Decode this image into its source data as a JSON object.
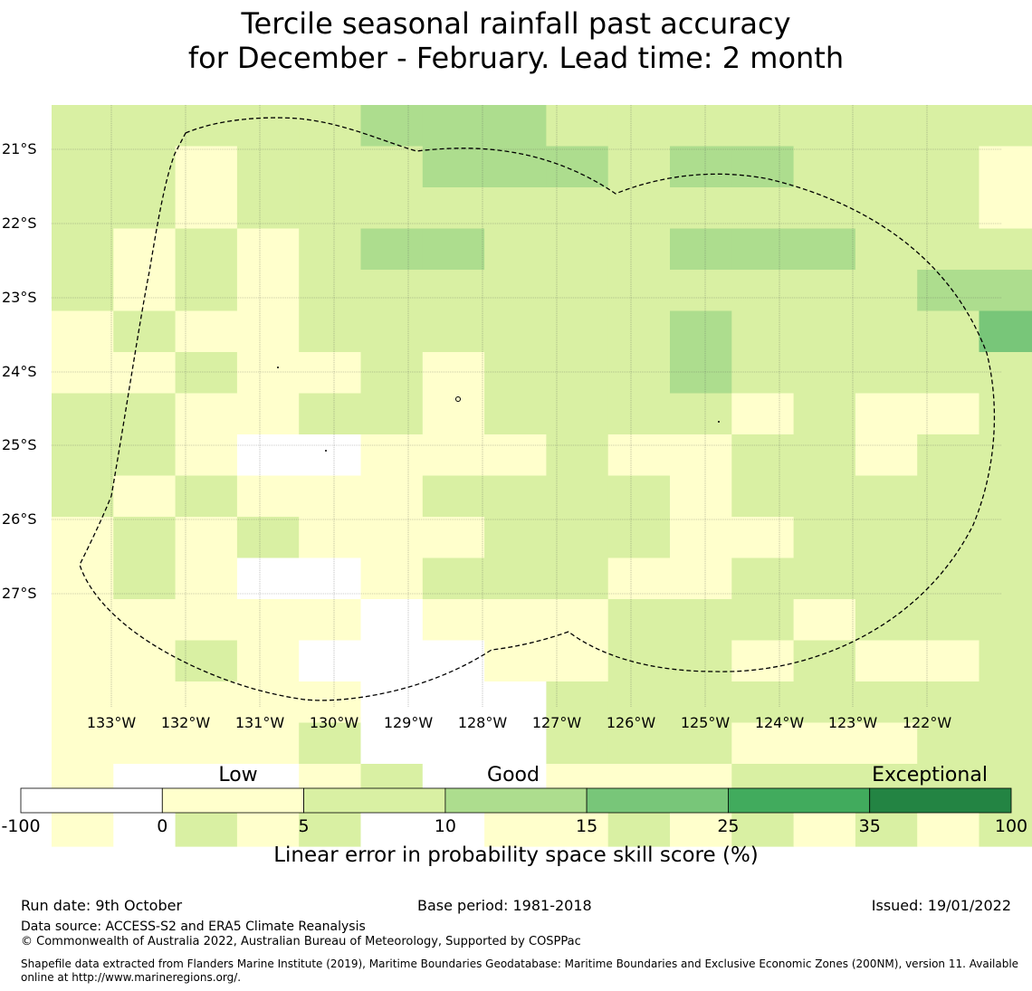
{
  "title": {
    "line1": "Tercile seasonal rainfall past accuracy",
    "line2": "for December - February. Lead time: 2 month"
  },
  "map": {
    "lat_labels": [
      "21°S",
      "22°S",
      "23°S",
      "24°S",
      "25°S",
      "26°S",
      "27°S"
    ],
    "lon_labels": [
      "133°W",
      "132°W",
      "131°W",
      "130°W",
      "129°W",
      "128°W",
      "127°W",
      "126°W",
      "125°W",
      "124°W",
      "123°W",
      "122°W"
    ],
    "grid": [
      "L222233322222222",
      "L212223332332221",
      "221L222222222221",
      "21L1233L22333L22",
      "21L1222222222233",
      "1L11222222322224",
      "11L11212L2322222",
      "22112212L2L1L112",
      "221001112112L122",
      "21L111L2221L2222",
      "1L12111L22112222",
      "1L1001L221122222",
      "1111101112221LL2",
      "11L100011221L112",
      "11111000L2LL22L2",
      "1111L000LL211122",
      "10001L0011122222",
      "10L1L0011L1L1212"
    ],
    "grid_legend": {
      "0": "white",
      "1": "low",
      "2": "good-low",
      "3": "good",
      "4": "good-high",
      "L": "low-good"
    },
    "land_labels": []
  },
  "colorbar": {
    "categories": [
      "Low",
      "Good",
      "Exceptional"
    ],
    "ticks": [
      "-100",
      "0",
      "5",
      "10",
      "15",
      "25",
      "35",
      "100"
    ],
    "colors": [
      "#ffffff",
      "#ffffcc",
      "#d9f0a3",
      "#addd8e",
      "#78c679",
      "#41ab5d",
      "#238443"
    ],
    "label": "Linear error in probability space skill score (%)"
  },
  "footer": {
    "run_date": "Run date: 9th October",
    "base_period": "Base period: 1981-2018",
    "issued": "Issued: 19/01/2022",
    "data_source": "Data source: ACCESS-S2 and ERA5 Climate Reanalysis",
    "copyright": "© Commonwealth of Australia 2022, Australian Bureau of Meteorology, Supported by COSPPac",
    "shapefile": "Shapefile data extracted from Flanders Marine Institute (2019), Maritime Boundaries Geodatabase: Maritime Boundaries and Exclusive Economic Zones (200NM), version 11. Available online at http://www.marineregions.org/."
  }
}
